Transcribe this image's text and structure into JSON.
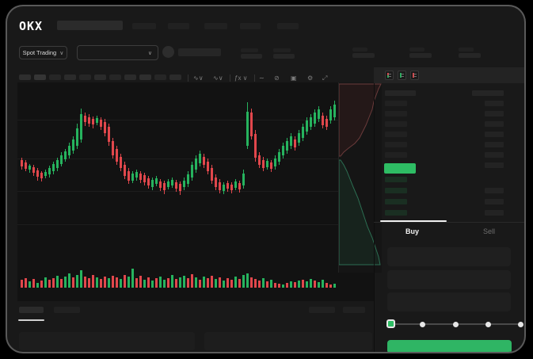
{
  "header": {
    "logo_text": "OKX",
    "market_selector": {
      "label": "Spot Trading",
      "chevron": "∨"
    },
    "pair_dropdown": {
      "chevron": "∨"
    }
  },
  "chart": {
    "toolbar_icons": [
      {
        "name": "compare-interval-icon",
        "glyph": "∿∨"
      },
      {
        "name": "chart-style-icon",
        "glyph": "∿∨"
      },
      {
        "name": "indicators-fx-icon",
        "glyph": "ƒx ∨"
      },
      {
        "name": "line-type-icon",
        "glyph": "∼"
      },
      {
        "name": "drawing-brush-icon",
        "glyph": "⊘"
      },
      {
        "name": "snapshot-camera-icon",
        "glyph": "▣"
      },
      {
        "name": "settings-gear-icon",
        "glyph": "⚙"
      },
      {
        "name": "fullscreen-icon",
        "glyph": "⤢"
      }
    ],
    "chart_data": {
      "type": "candlestick+volume",
      "units": "px (local chart coords, y down)",
      "colors": {
        "up": "#26b35e",
        "down": "#e1474c"
      },
      "candles": [
        [
          95,
          98,
          106,
          110,
          "r"
        ],
        [
          98,
          101,
          109,
          112,
          "r"
        ],
        [
          103,
          105,
          110,
          114,
          "g"
        ],
        [
          104,
          107,
          114,
          118,
          "r"
        ],
        [
          108,
          111,
          119,
          124,
          "r"
        ],
        [
          112,
          114,
          121,
          125,
          "r"
        ],
        [
          110,
          113,
          118,
          121,
          "g"
        ],
        [
          105,
          108,
          116,
          120,
          "g"
        ],
        [
          100,
          103,
          112,
          116,
          "g"
        ],
        [
          95,
          98,
          108,
          112,
          "g"
        ],
        [
          88,
          92,
          103,
          106,
          "g"
        ],
        [
          84,
          87,
          97,
          100,
          "g"
        ],
        [
          76,
          80,
          92,
          96,
          "g"
        ],
        [
          68,
          72,
          86,
          90,
          "g"
        ],
        [
          52,
          58,
          80,
          84,
          "g"
        ],
        [
          33,
          40,
          72,
          76,
          "g"
        ],
        [
          38,
          42,
          50,
          55,
          "r"
        ],
        [
          40,
          44,
          52,
          56,
          "r"
        ],
        [
          43,
          46,
          53,
          58,
          "r"
        ],
        [
          42,
          45,
          51,
          54,
          "g"
        ],
        [
          44,
          47,
          56,
          60,
          "r"
        ],
        [
          46,
          50,
          64,
          68,
          "r"
        ],
        [
          52,
          56,
          75,
          80,
          "r"
        ],
        [
          70,
          74,
          92,
          96,
          "r"
        ],
        [
          80,
          84,
          100,
          104,
          "r"
        ],
        [
          90,
          94,
          108,
          112,
          "r"
        ],
        [
          100,
          104,
          118,
          122,
          "r"
        ],
        [
          108,
          112,
          124,
          128,
          "r"
        ],
        [
          112,
          115,
          124,
          127,
          "g"
        ],
        [
          110,
          113,
          120,
          124,
          "g"
        ],
        [
          112,
          115,
          123,
          127,
          "r"
        ],
        [
          114,
          117,
          126,
          130,
          "r"
        ],
        [
          118,
          121,
          130,
          134,
          "r"
        ],
        [
          120,
          123,
          132,
          136,
          "g"
        ],
        [
          118,
          121,
          128,
          131,
          "g"
        ],
        [
          122,
          125,
          133,
          137,
          "r"
        ],
        [
          124,
          127,
          136,
          141,
          "r"
        ],
        [
          122,
          125,
          132,
          135,
          "g"
        ],
        [
          120,
          123,
          130,
          133,
          "g"
        ],
        [
          123,
          126,
          134,
          138,
          "r"
        ],
        [
          125,
          128,
          137,
          142,
          "r"
        ],
        [
          120,
          124,
          132,
          136,
          "g"
        ],
        [
          112,
          116,
          128,
          132,
          "g"
        ],
        [
          100,
          104,
          120,
          124,
          "g"
        ],
        [
          92,
          96,
          110,
          114,
          "g"
        ],
        [
          86,
          90,
          102,
          106,
          "g"
        ],
        [
          90,
          94,
          104,
          108,
          "r"
        ],
        [
          96,
          100,
          112,
          116,
          "r"
        ],
        [
          104,
          108,
          124,
          128,
          "r"
        ],
        [
          116,
          120,
          132,
          136,
          "r"
        ],
        [
          122,
          126,
          136,
          140,
          "r"
        ],
        [
          126,
          129,
          137,
          141,
          "g"
        ],
        [
          124,
          127,
          134,
          138,
          "r"
        ],
        [
          126,
          129,
          136,
          140,
          "r"
        ],
        [
          122,
          125,
          133,
          136,
          "g"
        ],
        [
          124,
          127,
          135,
          139,
          "r"
        ],
        [
          110,
          115,
          130,
          134,
          "g"
        ],
        [
          25,
          37,
          80,
          84,
          "g"
        ],
        [
          33,
          38,
          68,
          72,
          "r"
        ],
        [
          60,
          65,
          95,
          100,
          "r"
        ],
        [
          88,
          92,
          104,
          108,
          "r"
        ],
        [
          94,
          98,
          108,
          112,
          "r"
        ],
        [
          96,
          99,
          107,
          110,
          "g"
        ],
        [
          98,
          101,
          109,
          113,
          "r"
        ],
        [
          92,
          96,
          106,
          110,
          "g"
        ],
        [
          84,
          88,
          100,
          104,
          "g"
        ],
        [
          76,
          80,
          92,
          96,
          "g"
        ],
        [
          70,
          74,
          86,
          90,
          "g"
        ],
        [
          64,
          68,
          80,
          84,
          "g"
        ],
        [
          68,
          72,
          82,
          86,
          "r"
        ],
        [
          60,
          64,
          76,
          80,
          "g"
        ],
        [
          52,
          56,
          70,
          74,
          "g"
        ],
        [
          44,
          48,
          62,
          66,
          "g"
        ],
        [
          40,
          44,
          56,
          60,
          "g"
        ],
        [
          34,
          38,
          52,
          56,
          "g"
        ],
        [
          30,
          34,
          46,
          50,
          "g"
        ],
        [
          38,
          42,
          54,
          58,
          "r"
        ],
        [
          42,
          46,
          56,
          60,
          "r"
        ],
        [
          30,
          34,
          48,
          52,
          "g"
        ],
        [
          23,
          28,
          44,
          48,
          "g"
        ]
      ],
      "volumes": [
        [
          10,
          "r"
        ],
        [
          12,
          "r"
        ],
        [
          8,
          "g"
        ],
        [
          11,
          "r"
        ],
        [
          6,
          "g"
        ],
        [
          9,
          "r"
        ],
        [
          13,
          "g"
        ],
        [
          10,
          "r"
        ],
        [
          12,
          "r"
        ],
        [
          15,
          "g"
        ],
        [
          11,
          "r"
        ],
        [
          14,
          "g"
        ],
        [
          18,
          "g"
        ],
        [
          13,
          "r"
        ],
        [
          16,
          "g"
        ],
        [
          22,
          "g"
        ],
        [
          14,
          "r"
        ],
        [
          12,
          "r"
        ],
        [
          16,
          "r"
        ],
        [
          13,
          "g"
        ],
        [
          11,
          "r"
        ],
        [
          14,
          "r"
        ],
        [
          12,
          "g"
        ],
        [
          15,
          "r"
        ],
        [
          13,
          "r"
        ],
        [
          11,
          "g"
        ],
        [
          16,
          "r"
        ],
        [
          14,
          "g"
        ],
        [
          24,
          "g"
        ],
        [
          12,
          "r"
        ],
        [
          15,
          "r"
        ],
        [
          10,
          "g"
        ],
        [
          13,
          "r"
        ],
        [
          9,
          "g"
        ],
        [
          12,
          "r"
        ],
        [
          14,
          "g"
        ],
        [
          10,
          "g"
        ],
        [
          12,
          "r"
        ],
        [
          16,
          "g"
        ],
        [
          11,
          "r"
        ],
        [
          13,
          "g"
        ],
        [
          15,
          "g"
        ],
        [
          12,
          "r"
        ],
        [
          17,
          "r"
        ],
        [
          13,
          "g"
        ],
        [
          10,
          "r"
        ],
        [
          14,
          "g"
        ],
        [
          12,
          "r"
        ],
        [
          15,
          "r"
        ],
        [
          11,
          "g"
        ],
        [
          13,
          "r"
        ],
        [
          9,
          "g"
        ],
        [
          12,
          "r"
        ],
        [
          10,
          "r"
        ],
        [
          14,
          "g"
        ],
        [
          11,
          "r"
        ],
        [
          16,
          "g"
        ],
        [
          18,
          "g"
        ],
        [
          13,
          "r"
        ],
        [
          11,
          "r"
        ],
        [
          9,
          "r"
        ],
        [
          12,
          "g"
        ],
        [
          8,
          "r"
        ],
        [
          10,
          "g"
        ],
        [
          6,
          "r"
        ],
        [
          5,
          "r"
        ],
        [
          4,
          "g"
        ],
        [
          6,
          "r"
        ],
        [
          8,
          "g"
        ],
        [
          7,
          "r"
        ],
        [
          9,
          "g"
        ],
        [
          10,
          "r"
        ],
        [
          8,
          "g"
        ],
        [
          11,
          "g"
        ],
        [
          9,
          "r"
        ],
        [
          7,
          "g"
        ],
        [
          10,
          "g"
        ],
        [
          6,
          "r"
        ],
        [
          4,
          "r"
        ],
        [
          5,
          "g"
        ]
      ]
    }
  },
  "depth": {
    "asks_line": "53,2 50,8 47,16 44,24 42,34 38,44 34,54 30,62 26,70 20,77 12,83 6,88 2,93",
    "bids_line": "2,98 6,104 10,112 14,122 18,132 24,146 28,158 32,170 36,182 42,196 46,208 50,220 52,230",
    "asks_stroke": "#6b3b3b",
    "asks_fill": "rgba(120,45,45,0.16)",
    "bids_stroke": "#2c6e52",
    "bids_fill": "rgba(35,110,75,0.16)"
  },
  "orderbook": {
    "view_icons": [
      {
        "name": "book-combined-icon"
      },
      {
        "name": "book-bids-icon"
      },
      {
        "name": "book-asks-icon"
      }
    ],
    "last_price_color": "#2ebd64"
  },
  "trade_panel": {
    "tabs": [
      {
        "label": "Buy"
      },
      {
        "label": "Sell"
      }
    ],
    "slider": {
      "positions": 5,
      "selected_index": 0,
      "handle_color": "#2ebd64"
    },
    "submit_color": "#2fb564"
  }
}
